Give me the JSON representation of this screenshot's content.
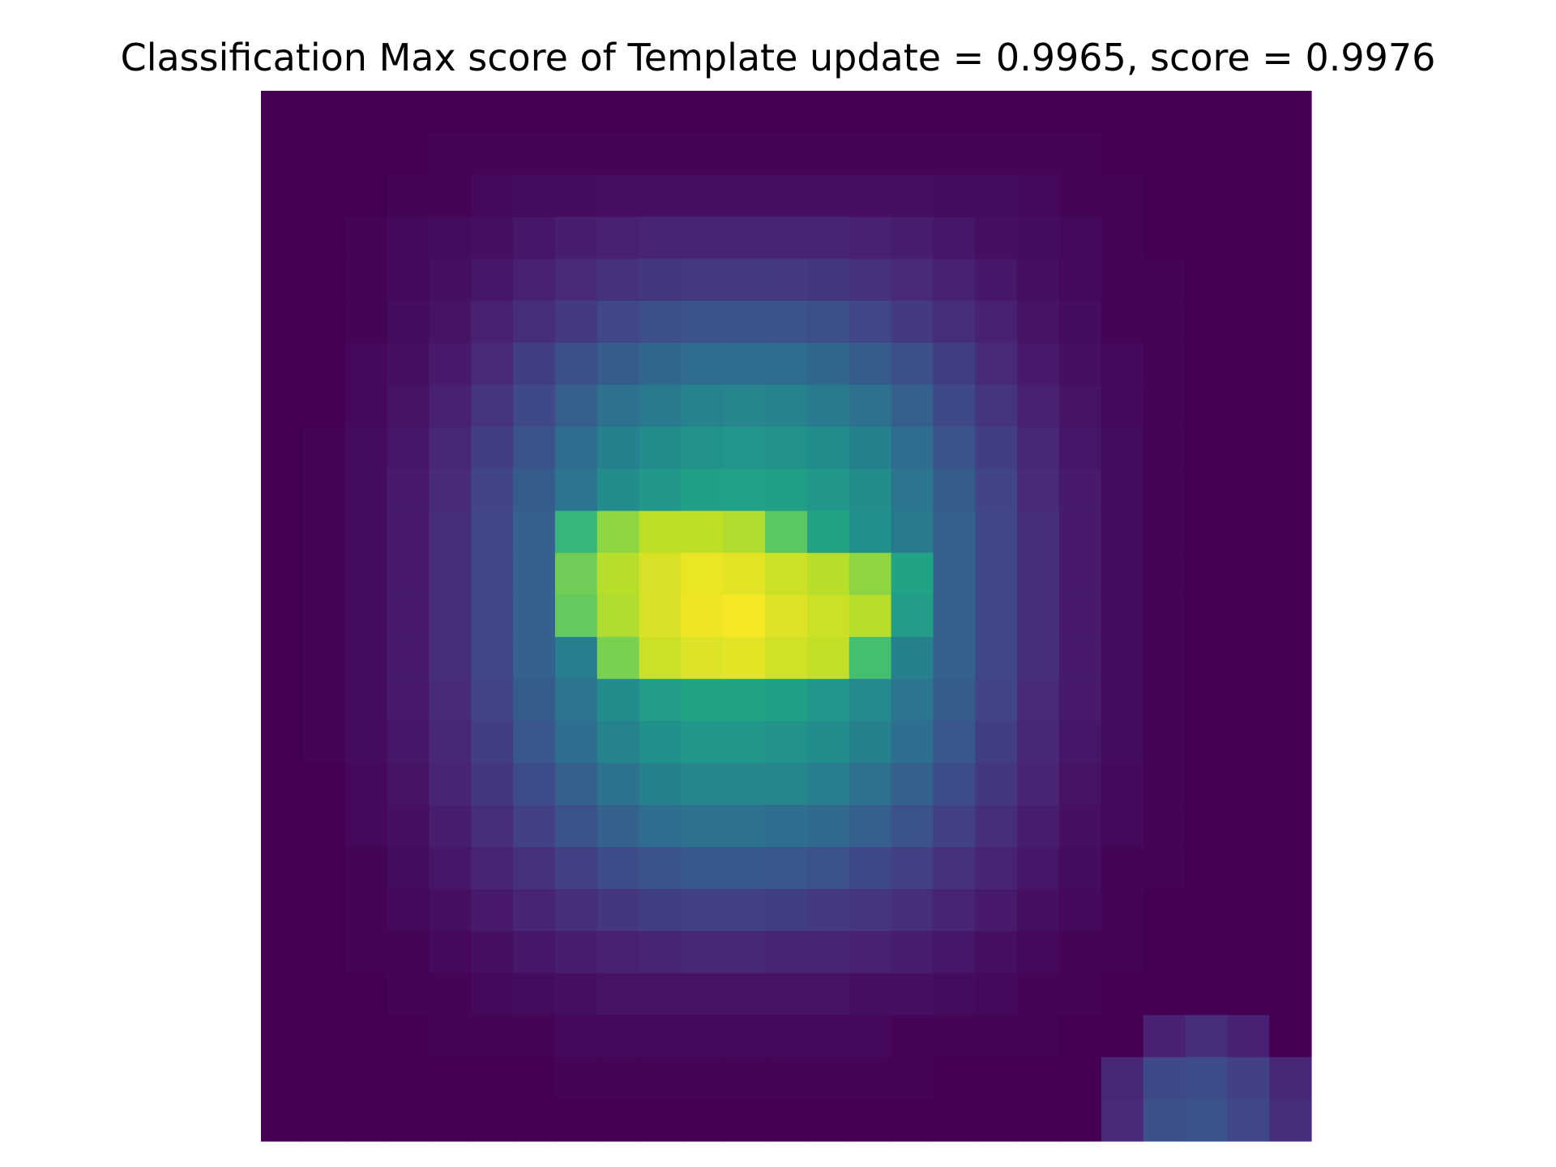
{
  "chart_data": {
    "type": "heatmap",
    "title": "Classification Max score of Template update = 0.9965, score = 0.9976",
    "xlabel": "",
    "ylabel": "",
    "axes_visible": false,
    "grid": false,
    "legend": "none",
    "colormap": "viridis",
    "value_range": [
      0,
      1
    ],
    "rows": 25,
    "cols": 25,
    "values": [
      [
        0.0,
        0.0,
        0.0,
        0.0,
        0.0,
        0.0,
        0.0,
        0.0,
        0.0,
        0.0,
        0.0,
        0.0,
        0.0,
        0.0,
        0.0,
        0.0,
        0.0,
        0.0,
        0.0,
        0.0,
        0.0,
        0.0,
        0.0,
        0.0,
        0.0
      ],
      [
        0.0,
        0.0,
        0.0,
        0.0,
        0.01,
        0.01,
        0.01,
        0.01,
        0.01,
        0.01,
        0.01,
        0.01,
        0.01,
        0.01,
        0.01,
        0.01,
        0.01,
        0.01,
        0.01,
        0.01,
        0.0,
        0.0,
        0.0,
        0.0,
        0.0
      ],
      [
        0.0,
        0.0,
        0.0,
        0.01,
        0.01,
        0.02,
        0.03,
        0.03,
        0.04,
        0.04,
        0.04,
        0.04,
        0.04,
        0.04,
        0.04,
        0.04,
        0.03,
        0.03,
        0.02,
        0.01,
        0.01,
        0.0,
        0.0,
        0.0,
        0.0
      ],
      [
        0.0,
        0.0,
        0.01,
        0.02,
        0.03,
        0.04,
        0.06,
        0.08,
        0.09,
        0.1,
        0.1,
        0.1,
        0.1,
        0.1,
        0.09,
        0.08,
        0.06,
        0.04,
        0.03,
        0.02,
        0.01,
        0.0,
        0.0,
        0.0,
        0.0
      ],
      [
        0.0,
        0.0,
        0.01,
        0.02,
        0.04,
        0.06,
        0.09,
        0.12,
        0.14,
        0.16,
        0.17,
        0.17,
        0.17,
        0.16,
        0.14,
        0.12,
        0.09,
        0.06,
        0.04,
        0.02,
        0.01,
        0.01,
        0.0,
        0.0,
        0.0
      ],
      [
        0.0,
        0.0,
        0.01,
        0.03,
        0.05,
        0.09,
        0.13,
        0.17,
        0.21,
        0.24,
        0.25,
        0.26,
        0.25,
        0.24,
        0.21,
        0.17,
        0.13,
        0.09,
        0.05,
        0.03,
        0.01,
        0.01,
        0.0,
        0.0,
        0.0
      ],
      [
        0.0,
        0.0,
        0.02,
        0.04,
        0.07,
        0.12,
        0.18,
        0.24,
        0.29,
        0.33,
        0.35,
        0.36,
        0.35,
        0.33,
        0.29,
        0.24,
        0.18,
        0.12,
        0.07,
        0.04,
        0.02,
        0.01,
        0.0,
        0.0,
        0.0
      ],
      [
        0.0,
        0.0,
        0.02,
        0.05,
        0.09,
        0.15,
        0.22,
        0.3,
        0.37,
        0.41,
        0.44,
        0.45,
        0.44,
        0.41,
        0.37,
        0.3,
        0.22,
        0.15,
        0.09,
        0.05,
        0.02,
        0.01,
        0.0,
        0.0,
        0.0
      ],
      [
        0.0,
        0.01,
        0.03,
        0.06,
        0.11,
        0.18,
        0.26,
        0.35,
        0.43,
        0.48,
        0.51,
        0.52,
        0.51,
        0.48,
        0.43,
        0.35,
        0.26,
        0.18,
        0.11,
        0.06,
        0.03,
        0.01,
        0.0,
        0.0,
        0.0
      ],
      [
        0.0,
        0.01,
        0.03,
        0.07,
        0.12,
        0.2,
        0.29,
        0.39,
        0.48,
        0.53,
        0.56,
        0.57,
        0.56,
        0.53,
        0.48,
        0.39,
        0.29,
        0.2,
        0.12,
        0.07,
        0.03,
        0.01,
        0.0,
        0.0,
        0.0
      ],
      [
        0.0,
        0.01,
        0.03,
        0.07,
        0.13,
        0.21,
        0.31,
        0.66,
        0.83,
        0.9,
        0.9,
        0.88,
        0.74,
        0.58,
        0.5,
        0.41,
        0.31,
        0.21,
        0.13,
        0.07,
        0.03,
        0.01,
        0.0,
        0.0,
        0.0
      ],
      [
        0.0,
        0.01,
        0.03,
        0.07,
        0.13,
        0.21,
        0.31,
        0.78,
        0.89,
        0.94,
        0.97,
        0.96,
        0.92,
        0.89,
        0.83,
        0.58,
        0.31,
        0.21,
        0.13,
        0.07,
        0.03,
        0.01,
        0.0,
        0.0,
        0.0
      ],
      [
        0.0,
        0.01,
        0.03,
        0.07,
        0.13,
        0.21,
        0.31,
        0.76,
        0.88,
        0.94,
        0.98,
        0.99,
        0.95,
        0.92,
        0.89,
        0.55,
        0.31,
        0.21,
        0.13,
        0.07,
        0.03,
        0.01,
        0.0,
        0.0,
        0.0
      ],
      [
        0.0,
        0.01,
        0.03,
        0.07,
        0.13,
        0.21,
        0.31,
        0.42,
        0.8,
        0.92,
        0.95,
        0.96,
        0.93,
        0.91,
        0.7,
        0.43,
        0.31,
        0.21,
        0.13,
        0.07,
        0.03,
        0.01,
        0.0,
        0.0,
        0.0
      ],
      [
        0.0,
        0.01,
        0.03,
        0.07,
        0.12,
        0.2,
        0.29,
        0.39,
        0.48,
        0.55,
        0.58,
        0.58,
        0.56,
        0.52,
        0.47,
        0.39,
        0.29,
        0.2,
        0.12,
        0.07,
        0.03,
        0.01,
        0.0,
        0.0,
        0.0
      ],
      [
        0.0,
        0.01,
        0.03,
        0.06,
        0.11,
        0.18,
        0.27,
        0.36,
        0.44,
        0.5,
        0.53,
        0.53,
        0.51,
        0.48,
        0.43,
        0.36,
        0.27,
        0.18,
        0.11,
        0.06,
        0.03,
        0.01,
        0.0,
        0.0,
        0.0
      ],
      [
        0.0,
        0.0,
        0.02,
        0.05,
        0.1,
        0.16,
        0.23,
        0.31,
        0.38,
        0.43,
        0.46,
        0.46,
        0.45,
        0.42,
        0.37,
        0.31,
        0.23,
        0.16,
        0.1,
        0.05,
        0.02,
        0.01,
        0.0,
        0.0,
        0.0
      ],
      [
        0.0,
        0.0,
        0.02,
        0.04,
        0.08,
        0.13,
        0.19,
        0.25,
        0.31,
        0.35,
        0.37,
        0.37,
        0.36,
        0.34,
        0.3,
        0.25,
        0.19,
        0.13,
        0.08,
        0.04,
        0.02,
        0.01,
        0.0,
        0.0,
        0.0
      ],
      [
        0.0,
        0.0,
        0.01,
        0.03,
        0.06,
        0.1,
        0.14,
        0.19,
        0.23,
        0.26,
        0.28,
        0.28,
        0.27,
        0.25,
        0.22,
        0.19,
        0.14,
        0.1,
        0.06,
        0.03,
        0.01,
        0.01,
        0.0,
        0.0,
        0.0
      ],
      [
        0.0,
        0.0,
        0.01,
        0.02,
        0.04,
        0.07,
        0.1,
        0.13,
        0.16,
        0.18,
        0.19,
        0.19,
        0.18,
        0.17,
        0.15,
        0.13,
        0.1,
        0.07,
        0.04,
        0.02,
        0.01,
        0.0,
        0.0,
        0.0,
        0.0
      ],
      [
        0.0,
        0.0,
        0.01,
        0.01,
        0.02,
        0.04,
        0.06,
        0.08,
        0.09,
        0.1,
        0.11,
        0.11,
        0.1,
        0.1,
        0.09,
        0.08,
        0.06,
        0.04,
        0.02,
        0.01,
        0.01,
        0.0,
        0.0,
        0.0,
        0.0
      ],
      [
        0.0,
        0.0,
        0.0,
        0.01,
        0.01,
        0.02,
        0.03,
        0.04,
        0.05,
        0.05,
        0.05,
        0.05,
        0.05,
        0.05,
        0.04,
        0.04,
        0.03,
        0.02,
        0.01,
        0.01,
        0.0,
        0.0,
        0.0,
        0.0,
        0.0
      ],
      [
        0.0,
        0.0,
        0.0,
        0.0,
        0.01,
        0.01,
        0.01,
        0.02,
        0.02,
        0.02,
        0.02,
        0.02,
        0.02,
        0.02,
        0.02,
        0.01,
        0.01,
        0.01,
        0.01,
        0.0,
        0.0,
        0.09,
        0.13,
        0.09,
        0.0
      ],
      [
        0.0,
        0.0,
        0.0,
        0.0,
        0.0,
        0.0,
        0.0,
        0.01,
        0.01,
        0.01,
        0.01,
        0.01,
        0.01,
        0.01,
        0.01,
        0.01,
        0.0,
        0.0,
        0.0,
        0.0,
        0.11,
        0.22,
        0.23,
        0.19,
        0.11
      ],
      [
        0.0,
        0.0,
        0.0,
        0.0,
        0.0,
        0.0,
        0.0,
        0.0,
        0.0,
        0.0,
        0.0,
        0.0,
        0.0,
        0.0,
        0.0,
        0.0,
        0.0,
        0.0,
        0.0,
        0.0,
        0.12,
        0.24,
        0.25,
        0.21,
        0.13
      ]
    ]
  }
}
